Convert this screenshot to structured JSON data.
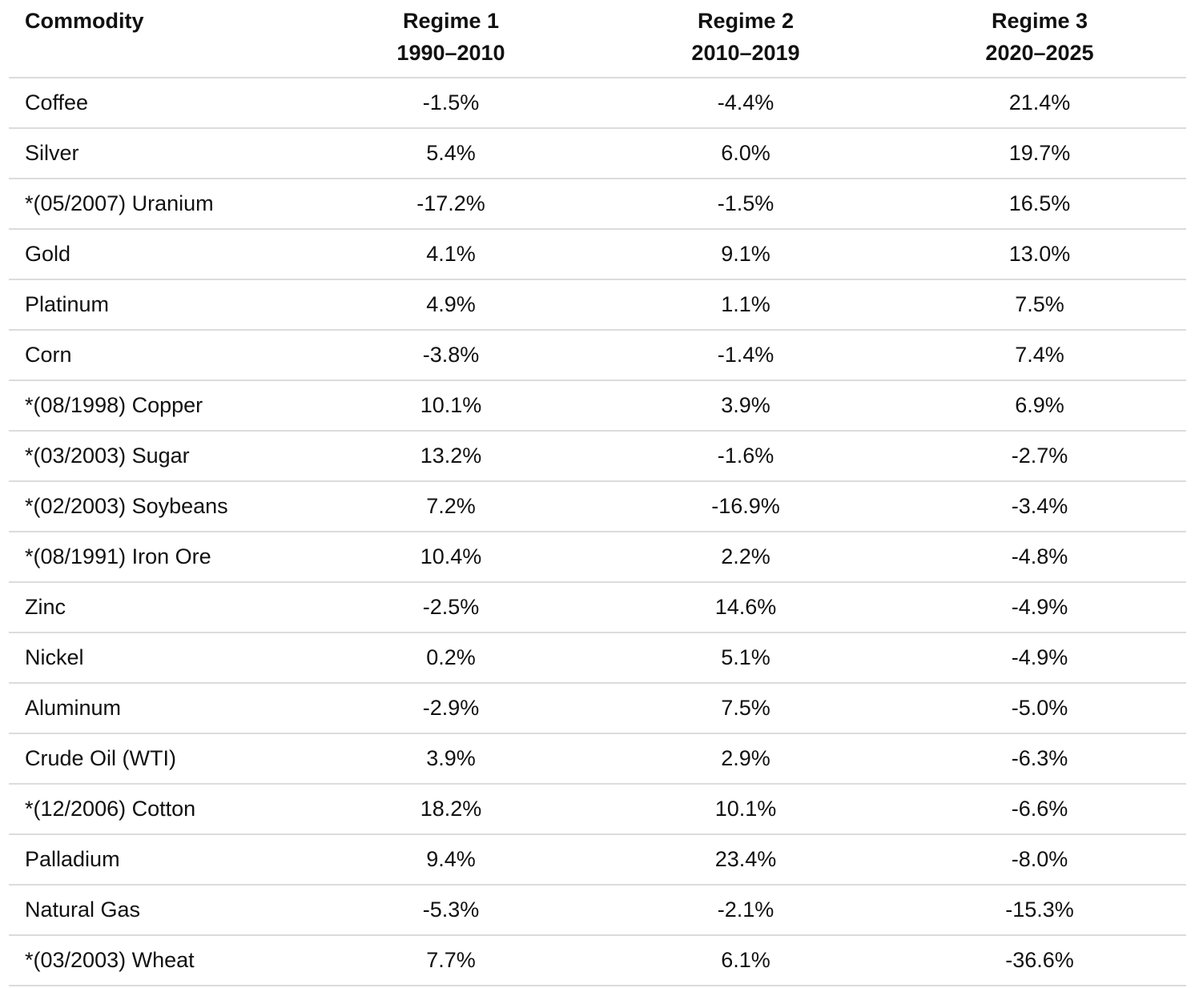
{
  "chart_data": {
    "type": "table",
    "columns": [
      {
        "label": "Commodity"
      },
      {
        "label_line1": "Regime 1",
        "label_line2": "1990–2010"
      },
      {
        "label_line1": "Regime 2",
        "label_line2": "2010–2019"
      },
      {
        "label_line1": "Regime 3",
        "label_line2": "2020–2025"
      }
    ],
    "rows": [
      {
        "commodity": "Coffee",
        "regime_1": "-1.5%",
        "regime_2": "-4.4%",
        "regime_3": "21.4%"
      },
      {
        "commodity": "Silver",
        "regime_1": "5.4%",
        "regime_2": "6.0%",
        "regime_3": "19.7%"
      },
      {
        "commodity": "*(05/2007) Uranium",
        "regime_1": "-17.2%",
        "regime_2": "-1.5%",
        "regime_3": "16.5%"
      },
      {
        "commodity": "Gold",
        "regime_1": "4.1%",
        "regime_2": "9.1%",
        "regime_3": "13.0%"
      },
      {
        "commodity": "Platinum",
        "regime_1": "4.9%",
        "regime_2": "1.1%",
        "regime_3": "7.5%"
      },
      {
        "commodity": "Corn",
        "regime_1": "-3.8%",
        "regime_2": "-1.4%",
        "regime_3": "7.4%"
      },
      {
        "commodity": "*(08/1998) Copper",
        "regime_1": "10.1%",
        "regime_2": "3.9%",
        "regime_3": "6.9%"
      },
      {
        "commodity": "*(03/2003) Sugar",
        "regime_1": "13.2%",
        "regime_2": "-1.6%",
        "regime_3": "-2.7%"
      },
      {
        "commodity": "*(02/2003) Soybeans",
        "regime_1": "7.2%",
        "regime_2": "-16.9%",
        "regime_3": "-3.4%"
      },
      {
        "commodity": "*(08/1991) Iron Ore",
        "regime_1": "10.4%",
        "regime_2": "2.2%",
        "regime_3": "-4.8%"
      },
      {
        "commodity": "Zinc",
        "regime_1": "-2.5%",
        "regime_2": "14.6%",
        "regime_3": "-4.9%"
      },
      {
        "commodity": "Nickel",
        "regime_1": "0.2%",
        "regime_2": "5.1%",
        "regime_3": "-4.9%"
      },
      {
        "commodity": "Aluminum",
        "regime_1": "-2.9%",
        "regime_2": "7.5%",
        "regime_3": "-5.0%"
      },
      {
        "commodity": "Crude Oil (WTI)",
        "regime_1": "3.9%",
        "regime_2": "2.9%",
        "regime_3": "-6.3%"
      },
      {
        "commodity": "*(12/2006) Cotton",
        "regime_1": "18.2%",
        "regime_2": "10.1%",
        "regime_3": "-6.6%"
      },
      {
        "commodity": "Palladium",
        "regime_1": "9.4%",
        "regime_2": "23.4%",
        "regime_3": "-8.0%"
      },
      {
        "commodity": "Natural Gas",
        "regime_1": "-5.3%",
        "regime_2": "-2.1%",
        "regime_3": "-15.3%"
      },
      {
        "commodity": "*(03/2003) Wheat",
        "regime_1": "7.7%",
        "regime_2": "6.1%",
        "regime_3": "-36.6%"
      }
    ]
  }
}
